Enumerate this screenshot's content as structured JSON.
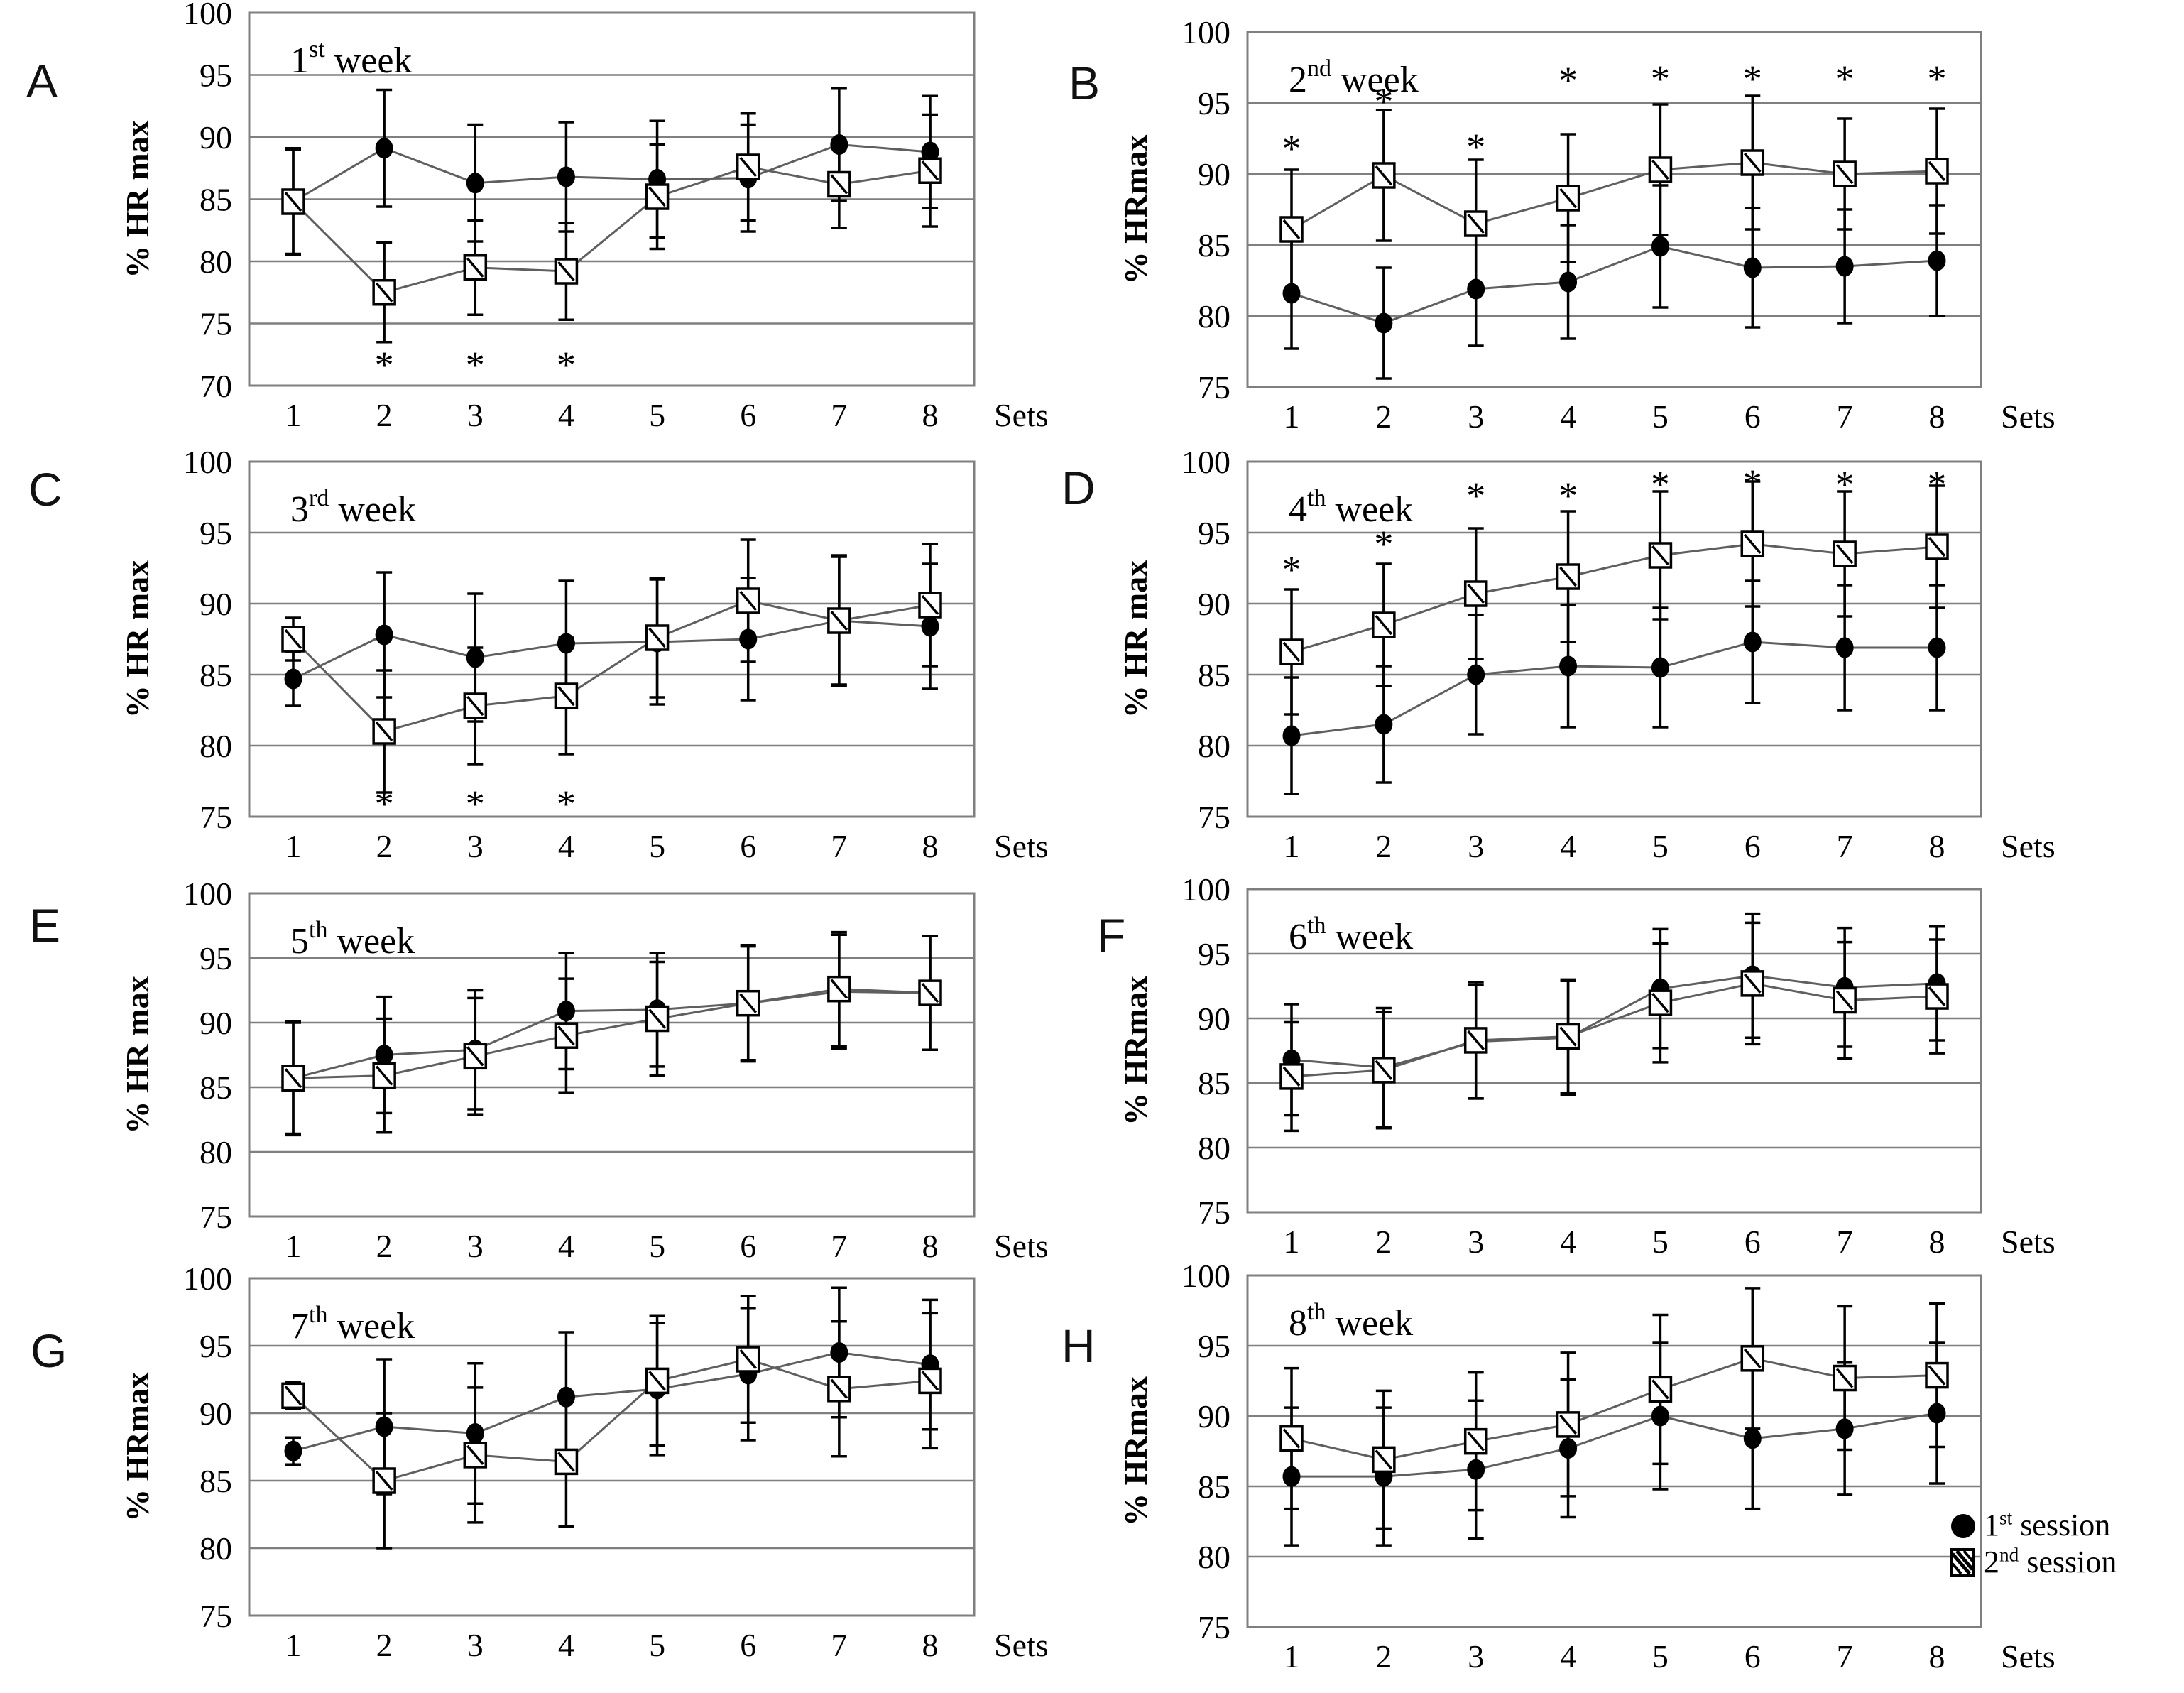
{
  "figure": {
    "legend": {
      "items": [
        {
          "marker": "filled-circle",
          "num": "1",
          "sup": "st",
          "word": "session"
        },
        {
          "marker": "hatched-square",
          "num": "2",
          "sup": "nd",
          "word": "session"
        }
      ]
    }
  },
  "chart_data": [
    {
      "id": "A",
      "type": "line",
      "panel_letter": "A",
      "title": {
        "num": "1",
        "sup": "st",
        "word": "week"
      },
      "ylabel": "% HR max",
      "xlabel": "Sets",
      "ylim": [
        70,
        100
      ],
      "yticks": [
        70,
        75,
        80,
        85,
        90,
        95,
        100
      ],
      "categories": [
        1,
        2,
        3,
        4,
        5,
        6,
        7,
        8
      ],
      "series": [
        {
          "name": "1st session",
          "marker": "circle",
          "values": [
            84.8,
            89.1,
            86.3,
            86.8,
            86.6,
            86.7,
            89.4,
            88.8
          ],
          "err": [
            4.2,
            4.7,
            4.7,
            4.4,
            4.7,
            4.3,
            4.5,
            4.5
          ]
        },
        {
          "name": "2nd session",
          "marker": "square",
          "values": [
            84.8,
            77.5,
            79.5,
            79.2,
            85.2,
            87.6,
            86.2,
            87.3
          ],
          "err": [
            4.3,
            4.0,
            3.8,
            3.9,
            4.2,
            4.3,
            3.5,
            4.5
          ]
        }
      ],
      "asterisks": {
        "position": "below",
        "sets": [
          2,
          3,
          4
        ],
        "y": [
          72,
          72,
          72
        ]
      }
    },
    {
      "id": "B",
      "type": "line",
      "panel_letter": "B",
      "title": {
        "num": "2",
        "sup": "nd",
        "word": "week"
      },
      "ylabel": "% HRmax",
      "xlabel": "Sets",
      "ylim": [
        75,
        100
      ],
      "yticks": [
        75,
        80,
        85,
        90,
        95,
        100
      ],
      "categories": [
        1,
        2,
        3,
        4,
        5,
        6,
        7,
        8
      ],
      "series": [
        {
          "name": "1st session",
          "marker": "circle",
          "values": [
            81.6,
            79.5,
            81.9,
            82.4,
            84.9,
            83.4,
            83.5,
            83.9
          ],
          "err": [
            3.9,
            3.9,
            4.0,
            4.0,
            4.3,
            4.2,
            4.0,
            3.9
          ]
        },
        {
          "name": "2nd session",
          "marker": "square",
          "values": [
            86.1,
            89.9,
            86.5,
            88.3,
            90.3,
            90.8,
            90.0,
            90.2
          ],
          "err": [
            4.2,
            4.6,
            4.5,
            4.5,
            4.6,
            4.7,
            3.9,
            4.4
          ]
        }
      ],
      "asterisks": {
        "position": "above",
        "sets": [
          1,
          2,
          3,
          4,
          5,
          6,
          7,
          8
        ],
        "y": [
          92.1,
          95.4,
          92.2,
          96.9,
          97.0,
          97.0,
          97.0,
          97.0
        ]
      }
    },
    {
      "id": "C",
      "type": "line",
      "panel_letter": "C",
      "title": {
        "num": "3",
        "sup": "rd",
        "word": "week"
      },
      "ylabel": "% HR max",
      "xlabel": "Sets",
      "ylim": [
        75,
        100
      ],
      "yticks": [
        75,
        80,
        85,
        90,
        95,
        100
      ],
      "categories": [
        1,
        2,
        3,
        4,
        5,
        6,
        7,
        8
      ],
      "series": [
        {
          "name": "1st session",
          "marker": "circle",
          "values": [
            84.7,
            87.8,
            86.2,
            87.2,
            87.3,
            87.5,
            88.8,
            88.4
          ],
          "err": [
            1.9,
            4.4,
            4.5,
            4.4,
            4.4,
            4.3,
            4.6,
            4.4
          ]
        },
        {
          "name": "2nd session",
          "marker": "square",
          "values": [
            87.5,
            81.0,
            82.8,
            83.5,
            87.6,
            90.2,
            88.8,
            89.9
          ],
          "err": [
            1.5,
            4.3,
            4.1,
            4.1,
            4.2,
            4.3,
            4.5,
            4.3
          ]
        }
      ],
      "asterisks": {
        "position": "below",
        "sets": [
          2,
          3,
          4
        ],
        "y": [
          76.2,
          76.2,
          76.2
        ]
      }
    },
    {
      "id": "D",
      "type": "line",
      "panel_letter": "D",
      "title": {
        "num": "4",
        "sup": "th",
        "word": "week"
      },
      "ylabel": "% HR max",
      "xlabel": "Sets",
      "ylim": [
        75,
        100
      ],
      "yticks": [
        75,
        80,
        85,
        90,
        95,
        100
      ],
      "categories": [
        1,
        2,
        3,
        4,
        5,
        6,
        7,
        8
      ],
      "series": [
        {
          "name": "1st session",
          "marker": "circle",
          "values": [
            80.7,
            81.5,
            85.0,
            85.6,
            85.5,
            87.3,
            86.9,
            86.9
          ],
          "err": [
            4.1,
            4.1,
            4.2,
            4.3,
            4.2,
            4.3,
            4.4,
            4.4
          ]
        },
        {
          "name": "2nd session",
          "marker": "square",
          "values": [
            86.6,
            88.5,
            90.7,
            91.9,
            93.4,
            94.2,
            93.5,
            94.0
          ],
          "err": [
            4.4,
            4.3,
            4.6,
            4.6,
            4.5,
            4.4,
            4.4,
            4.3
          ]
        }
      ],
      "asterisks": {
        "position": "above",
        "sets": [
          1,
          2,
          3,
          4,
          5,
          6,
          7,
          8
        ],
        "y": [
          92.7,
          94.5,
          97.9,
          97.9,
          98.7,
          98.8,
          98.7,
          98.7
        ]
      }
    },
    {
      "id": "E",
      "type": "line",
      "panel_letter": "E",
      "title": {
        "num": "5",
        "sup": "th",
        "word": "week"
      },
      "ylabel": "% HR max",
      "xlabel": "Sets",
      "ylim": [
        75,
        100
      ],
      "yticks": [
        75,
        80,
        85,
        90,
        95,
        100
      ],
      "categories": [
        1,
        2,
        3,
        4,
        5,
        6,
        7,
        8
      ],
      "series": [
        {
          "name": "1st session",
          "marker": "circle",
          "values": [
            85.7,
            87.5,
            87.9,
            90.9,
            91.0,
            91.5,
            92.4,
            92.3
          ],
          "err": [
            4.4,
            4.5,
            4.6,
            4.5,
            4.4,
            4.5,
            4.4,
            4.4
          ]
        },
        {
          "name": "2nd session",
          "marker": "square",
          "values": [
            85.7,
            85.9,
            87.4,
            89.0,
            90.3,
            91.5,
            92.6,
            92.3
          ],
          "err": [
            4.3,
            4.4,
            4.5,
            4.4,
            4.4,
            4.4,
            4.4,
            4.4
          ]
        }
      ],
      "asterisks": null
    },
    {
      "id": "F",
      "type": "line",
      "panel_letter": "F",
      "title": {
        "num": "6",
        "sup": "th",
        "word": "week"
      },
      "ylabel": "% HRmax",
      "xlabel": "Sets",
      "ylim": [
        75,
        100
      ],
      "yticks": [
        75,
        80,
        85,
        90,
        95,
        100
      ],
      "categories": [
        1,
        2,
        3,
        4,
        5,
        6,
        7,
        8
      ],
      "series": [
        {
          "name": "1st session",
          "marker": "circle",
          "values": [
            86.8,
            86.2,
            88.2,
            88.5,
            92.3,
            93.3,
            92.4,
            92.7
          ],
          "err": [
            4.3,
            4.6,
            4.4,
            4.4,
            4.6,
            4.8,
            4.6,
            4.4
          ]
        },
        {
          "name": "2nd session",
          "marker": "square",
          "values": [
            85.5,
            86.0,
            88.3,
            88.6,
            91.2,
            92.7,
            91.4,
            91.7
          ],
          "err": [
            4.2,
            4.5,
            4.5,
            4.4,
            4.6,
            4.7,
            4.5,
            4.4
          ]
        }
      ],
      "asterisks": null
    },
    {
      "id": "G",
      "type": "line",
      "panel_letter": "G",
      "title": {
        "num": "7",
        "sup": "th",
        "word": "week"
      },
      "ylabel": "% HRmax",
      "xlabel": "Sets",
      "ylim": [
        75,
        100
      ],
      "yticks": [
        75,
        80,
        85,
        90,
        95,
        100
      ],
      "categories": [
        1,
        2,
        3,
        4,
        5,
        6,
        7,
        8
      ],
      "series": [
        {
          "name": "1st session",
          "marker": "circle",
          "values": [
            87.2,
            89.0,
            88.5,
            91.2,
            91.8,
            92.9,
            94.5,
            93.6
          ],
          "err": [
            1.0,
            5.0,
            5.2,
            4.8,
            4.9,
            4.9,
            4.8,
            4.8
          ]
        },
        {
          "name": "2nd session",
          "marker": "square",
          "values": [
            91.3,
            85.0,
            86.9,
            86.4,
            92.4,
            94.0,
            91.8,
            92.4
          ],
          "err": [
            1.0,
            5.0,
            5.0,
            4.8,
            4.8,
            4.7,
            5.0,
            5.0
          ]
        }
      ],
      "asterisks": null
    },
    {
      "id": "H",
      "type": "line",
      "panel_letter": "H",
      "title": {
        "num": "8",
        "sup": "th",
        "word": "week"
      },
      "ylabel": "% HRmax",
      "xlabel": "Sets",
      "ylim": [
        75,
        100
      ],
      "yticks": [
        75,
        80,
        85,
        90,
        95,
        100
      ],
      "categories": [
        1,
        2,
        3,
        4,
        5,
        6,
        7,
        8
      ],
      "series": [
        {
          "name": "1st session",
          "marker": "circle",
          "values": [
            85.7,
            85.7,
            86.2,
            87.7,
            90.0,
            88.4,
            89.1,
            90.2
          ],
          "err": [
            4.9,
            4.9,
            4.9,
            4.9,
            5.2,
            5.0,
            4.7,
            5.0
          ]
        },
        {
          "name": "2nd session",
          "marker": "square",
          "values": [
            88.4,
            86.9,
            88.2,
            89.4,
            91.9,
            94.1,
            92.7,
            92.9
          ],
          "err": [
            5.0,
            4.9,
            4.9,
            5.1,
            5.3,
            5.0,
            5.1,
            5.1
          ]
        }
      ],
      "asterisks": null
    }
  ]
}
